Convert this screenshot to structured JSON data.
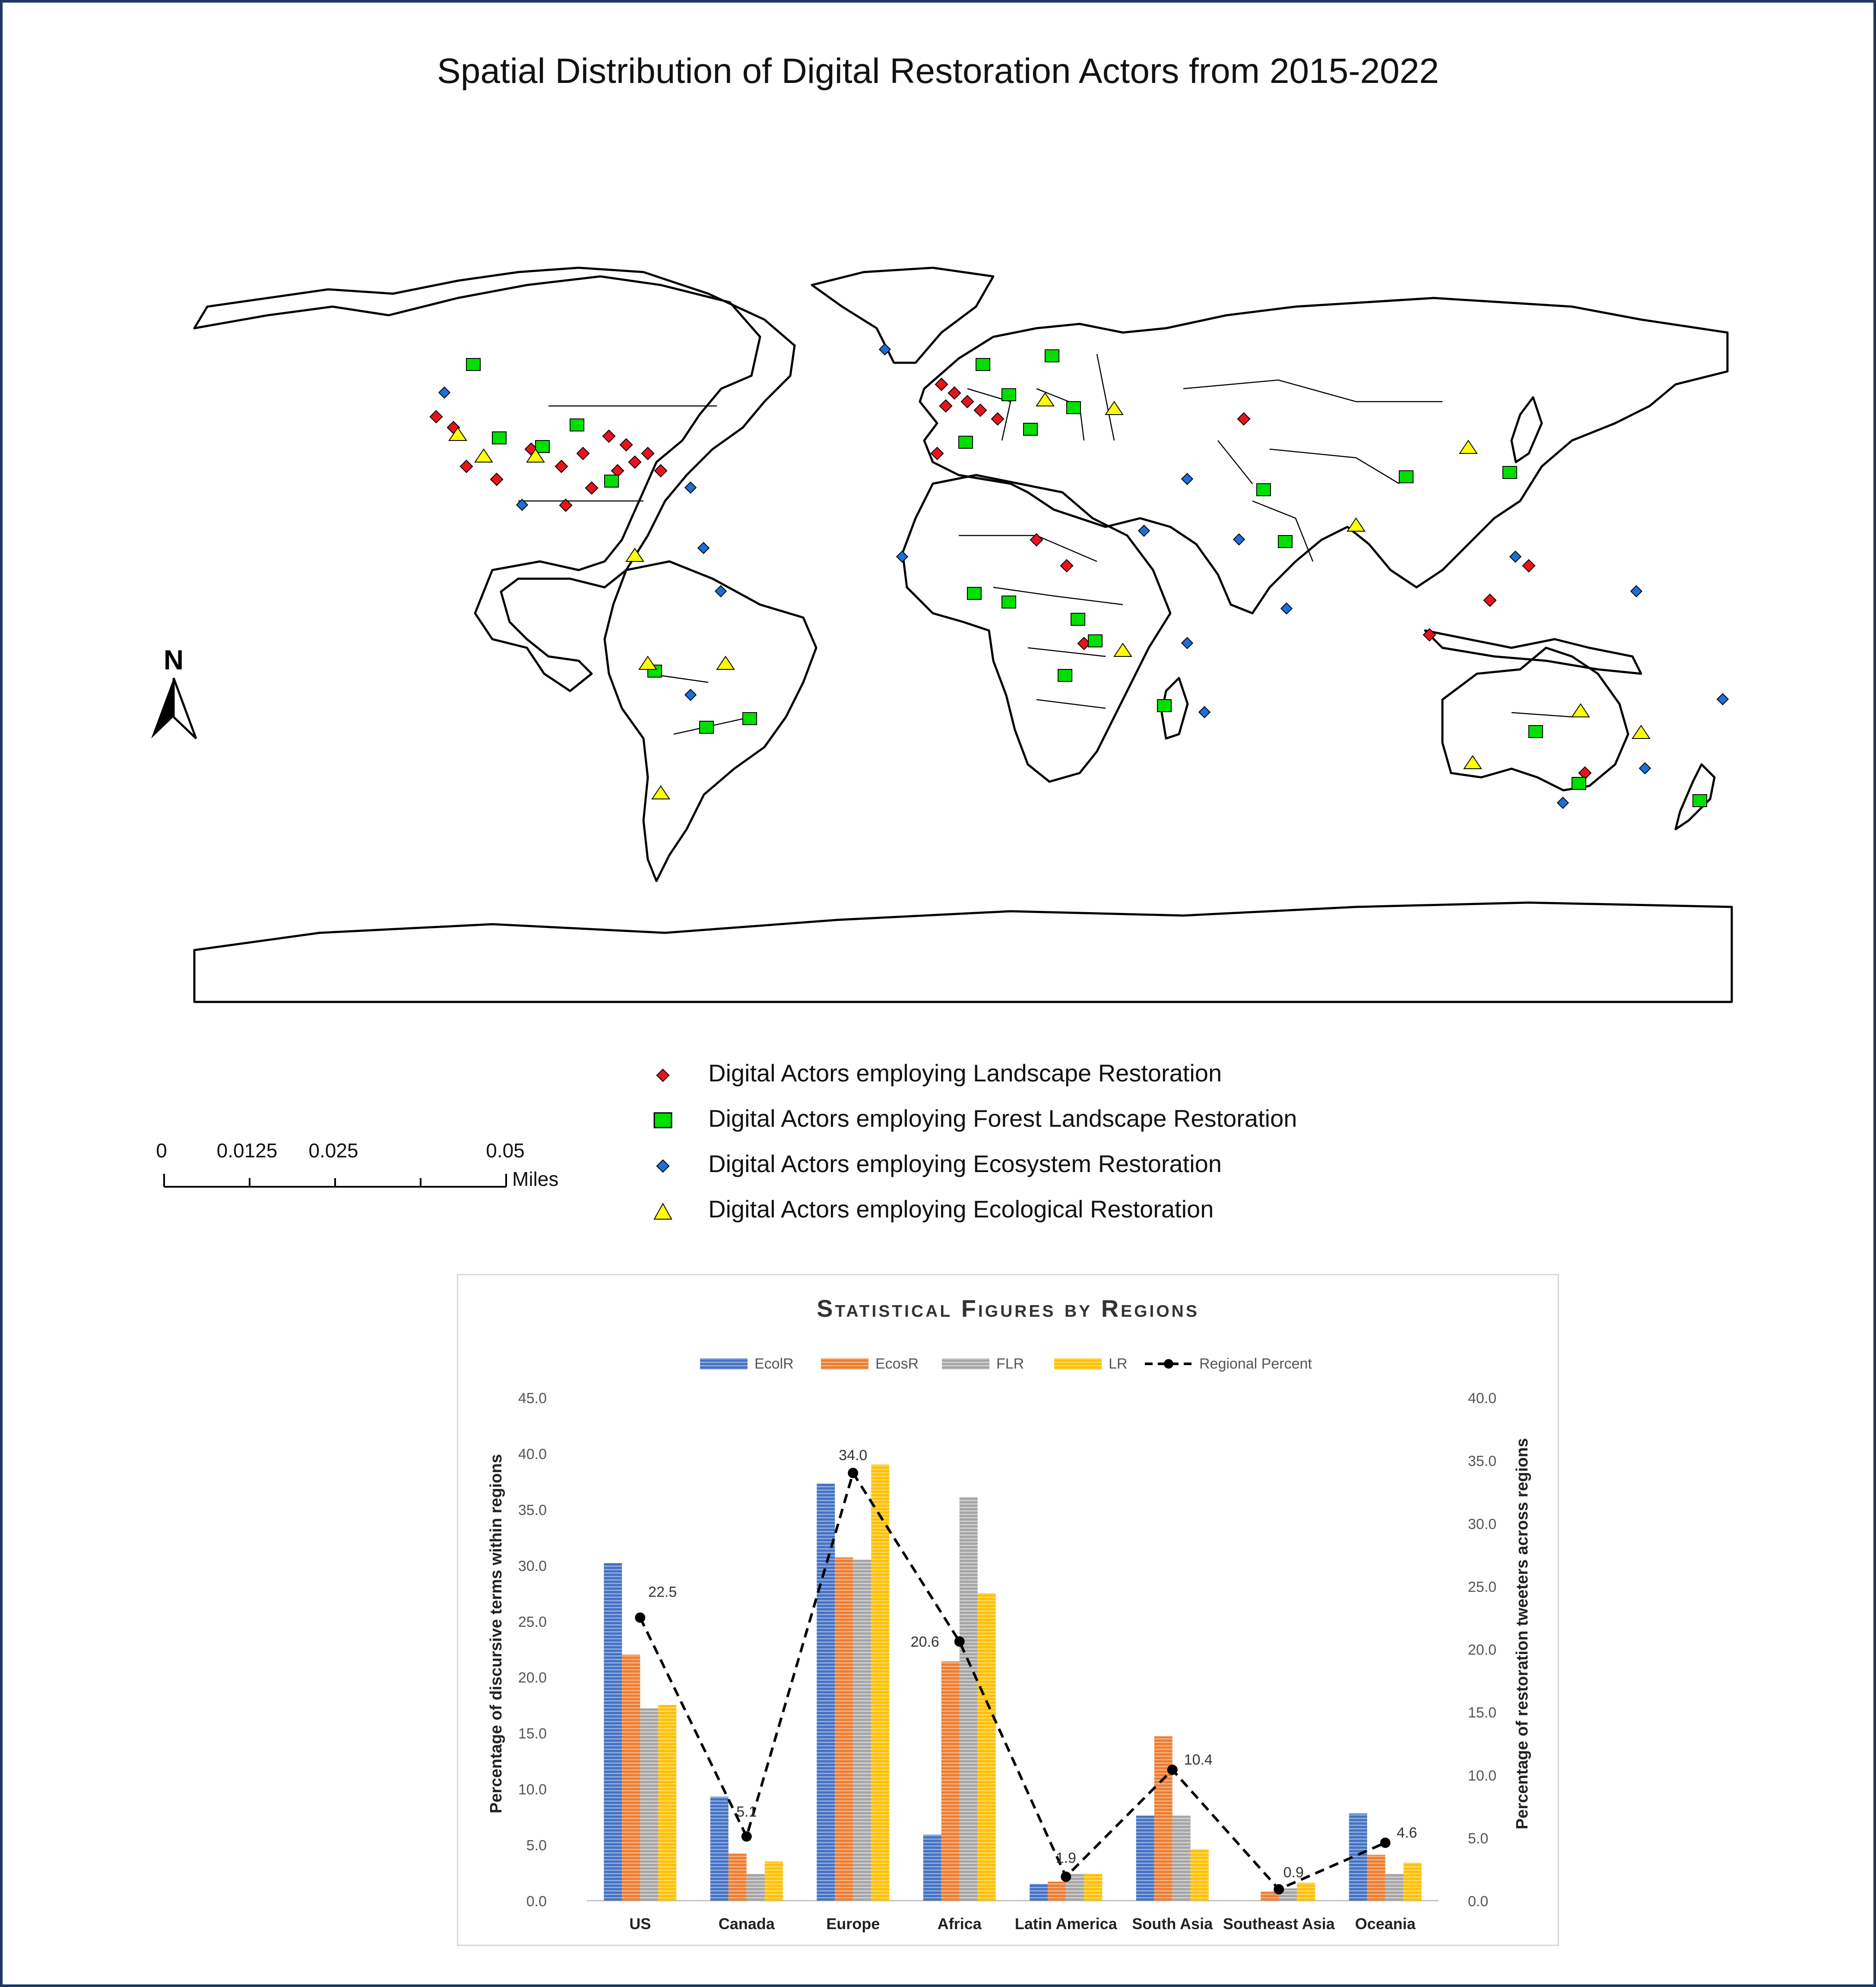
{
  "map": {
    "title": "Spatial Distribution of Digital Restoration Actors from 2015-2022",
    "north_label": "N",
    "legend": [
      {
        "label": "Digital Actors employing Landscape Restoration",
        "marker": "diamond",
        "color": "#e8141b"
      },
      {
        "label": "Digital Actors employing Forest Landscape Restoration",
        "marker": "square",
        "color": "#00e000"
      },
      {
        "label": "Digital Actors employing Ecosystem Restoration",
        "marker": "diamond",
        "color": "#1c6fd6"
      },
      {
        "label": "Digital Actors employing Ecological Restoration",
        "marker": "triangle",
        "color": "#ffff00"
      }
    ],
    "scale_bar": {
      "ticks": [
        "0",
        "0.0125",
        "0.025",
        "0.05"
      ],
      "unit": "Miles"
    }
  },
  "chart_data": {
    "type": "bar",
    "title": "Statistical Figures by Regions",
    "categories": [
      "US",
      "Canada",
      "Europe",
      "Africa",
      "Latin America",
      "South Asia",
      "Southeast Asia",
      "Oceania"
    ],
    "series": [
      {
        "name": "EcolR",
        "color": "#4472c4",
        "values": [
          30.2,
          9.3,
          37.3,
          5.9,
          1.5,
          7.6,
          0.0,
          7.8
        ]
      },
      {
        "name": "EcosR",
        "color": "#ed7d31",
        "values": [
          22.0,
          4.2,
          30.7,
          21.4,
          1.7,
          14.7,
          0.8,
          4.1
        ]
      },
      {
        "name": "FLR",
        "color": "#a5a5a5",
        "values": [
          17.2,
          2.4,
          30.5,
          36.1,
          2.4,
          7.6,
          1.1,
          2.4
        ]
      },
      {
        "name": "LR",
        "color": "#ffc000",
        "values": [
          17.5,
          3.5,
          39.0,
          27.5,
          2.4,
          4.6,
          1.6,
          3.4
        ]
      }
    ],
    "line": {
      "name": "Regional Percent",
      "values": [
        22.5,
        5.1,
        34.0,
        20.6,
        1.9,
        10.4,
        0.9,
        4.6
      ],
      "labels": [
        "22.5",
        "5.1",
        "34.0",
        "20.6",
        "1.9",
        "10.4",
        "0.9",
        "4.6"
      ]
    },
    "ylabel": "Percentage of discursive terms within regions",
    "y2label": "Percentage of restoration tweeters across regions",
    "ylim": [
      0,
      45
    ],
    "y2lim": [
      0,
      40
    ],
    "yticks": [
      "0.0",
      "5.0",
      "10.0",
      "15.0",
      "20.0",
      "25.0",
      "30.0",
      "35.0",
      "40.0",
      "45.0"
    ],
    "y2ticks": [
      "0.0",
      "5.0",
      "10.0",
      "15.0",
      "20.0",
      "25.0",
      "30.0",
      "35.0",
      "40.0"
    ],
    "legend_position": "top"
  }
}
